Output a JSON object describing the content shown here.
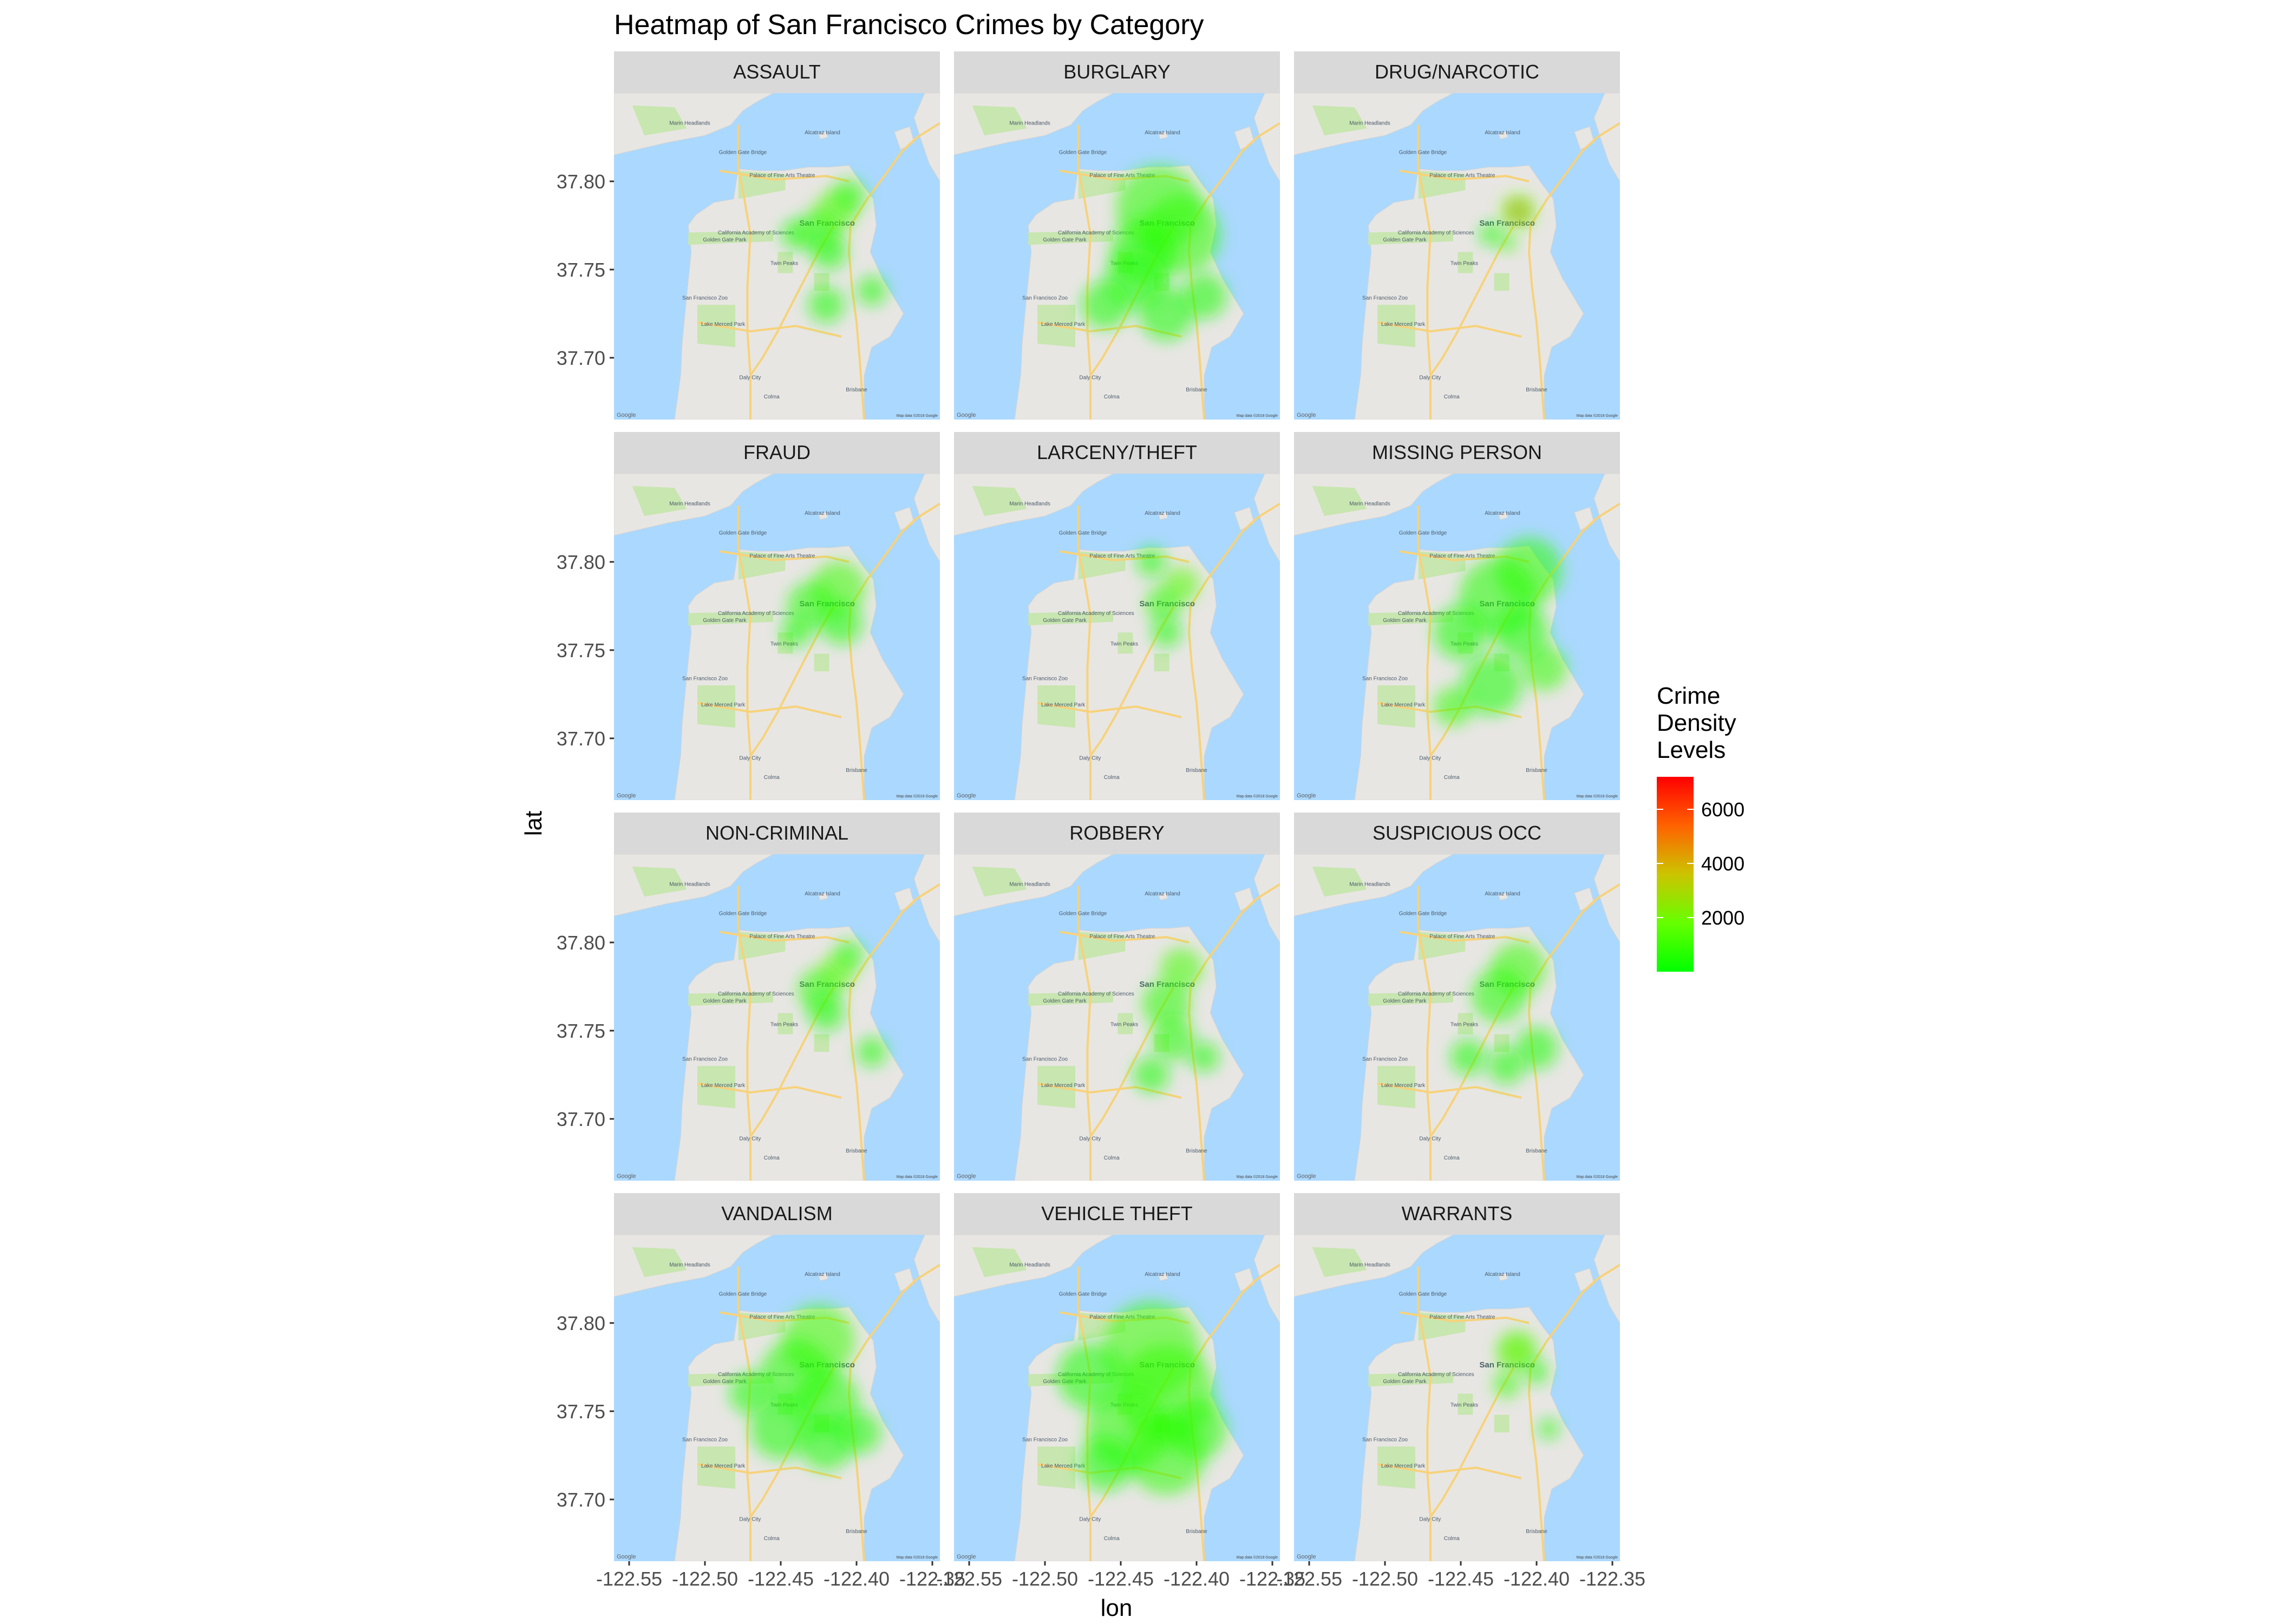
{
  "chart_data": {
    "type": "heatmap",
    "title": "Heatmap of San Francisco Crimes by Category",
    "xlabel": "lon",
    "ylabel": "lat",
    "xlim": [
      -122.56,
      -122.345
    ],
    "ylim": [
      37.665,
      37.85
    ],
    "x_ticks": [
      -122.55,
      -122.5,
      -122.45,
      -122.4,
      -122.35
    ],
    "x_tick_labels": [
      "-122.55",
      "-122.50",
      "-122.45",
      "-122.40",
      "-122.35"
    ],
    "y_ticks": [
      37.7,
      37.75,
      37.8
    ],
    "y_tick_labels": [
      "37.70",
      "37.75",
      "37.80"
    ],
    "legend": {
      "title": "Crime\nDensity\nLevels",
      "title_lines": [
        "Crime",
        "Density",
        "Levels"
      ],
      "placement": "right",
      "colors": [
        "#00ff00",
        "#ff0000"
      ],
      "range": [
        0,
        7200
      ],
      "breaks": [
        2000,
        4000,
        6000
      ],
      "break_labels": [
        "2000",
        "4000",
        "6000"
      ]
    },
    "panels": [
      {
        "label": "ASSAULT",
        "hotspots": [
          {
            "lon": -122.414,
            "lat": 37.783,
            "level": 1400,
            "r": 0.014
          },
          {
            "lon": -122.425,
            "lat": 37.772,
            "level": 700,
            "r": 0.014
          },
          {
            "lon": -122.405,
            "lat": 37.792,
            "level": 600,
            "r": 0.011
          },
          {
            "lon": -122.418,
            "lat": 37.76,
            "level": 450,
            "r": 0.012
          },
          {
            "lon": -122.44,
            "lat": 37.77,
            "level": 300,
            "r": 0.01
          },
          {
            "lon": -122.39,
            "lat": 37.738,
            "level": 300,
            "r": 0.01
          },
          {
            "lon": -122.42,
            "lat": 37.73,
            "level": 250,
            "r": 0.012
          }
        ]
      },
      {
        "label": "BURGLARY",
        "hotspots": [
          {
            "lon": -122.425,
            "lat": 37.785,
            "level": 700,
            "r": 0.028
          },
          {
            "lon": -122.41,
            "lat": 37.77,
            "level": 650,
            "r": 0.026
          },
          {
            "lon": -122.435,
            "lat": 37.76,
            "level": 500,
            "r": 0.022
          },
          {
            "lon": -122.44,
            "lat": 37.745,
            "level": 400,
            "r": 0.02
          },
          {
            "lon": -122.46,
            "lat": 37.73,
            "level": 400,
            "r": 0.016
          },
          {
            "lon": -122.42,
            "lat": 37.725,
            "level": 400,
            "r": 0.018
          },
          {
            "lon": -122.395,
            "lat": 37.735,
            "level": 350,
            "r": 0.015
          }
        ]
      },
      {
        "label": "DRUG/NARCOTIC",
        "hotspots": [
          {
            "lon": -122.412,
            "lat": 37.783,
            "level": 7000,
            "r": 0.006
          },
          {
            "lon": -122.412,
            "lat": 37.783,
            "level": 2000,
            "r": 0.012
          },
          {
            "lon": -122.419,
            "lat": 37.765,
            "level": 1200,
            "r": 0.006
          },
          {
            "lon": -122.43,
            "lat": 37.77,
            "level": 300,
            "r": 0.008
          }
        ]
      },
      {
        "label": "FRAUD",
        "hotspots": [
          {
            "lon": -122.412,
            "lat": 37.785,
            "level": 1000,
            "r": 0.018
          },
          {
            "lon": -122.43,
            "lat": 37.775,
            "level": 500,
            "r": 0.016
          },
          {
            "lon": -122.41,
            "lat": 37.765,
            "level": 400,
            "r": 0.014
          },
          {
            "lon": -122.44,
            "lat": 37.76,
            "level": 250,
            "r": 0.01
          }
        ]
      },
      {
        "label": "LARCENY/THEFT",
        "hotspots": [
          {
            "lon": -122.41,
            "lat": 37.787,
            "level": 1500,
            "r": 0.012
          },
          {
            "lon": -122.422,
            "lat": 37.776,
            "level": 700,
            "r": 0.012
          },
          {
            "lon": -122.43,
            "lat": 37.8,
            "level": 300,
            "r": 0.01
          },
          {
            "lon": -122.42,
            "lat": 37.76,
            "level": 300,
            "r": 0.01
          }
        ]
      },
      {
        "label": "MISSING PERSON",
        "hotspots": [
          {
            "lon": -122.405,
            "lat": 37.795,
            "level": 650,
            "r": 0.022
          },
          {
            "lon": -122.425,
            "lat": 37.78,
            "level": 600,
            "r": 0.026
          },
          {
            "lon": -122.395,
            "lat": 37.74,
            "level": 800,
            "r": 0.015
          },
          {
            "lon": -122.455,
            "lat": 37.718,
            "level": 800,
            "r": 0.013
          },
          {
            "lon": -122.43,
            "lat": 37.73,
            "level": 400,
            "r": 0.02
          },
          {
            "lon": -122.45,
            "lat": 37.76,
            "level": 350,
            "r": 0.018
          },
          {
            "lon": -122.41,
            "lat": 37.76,
            "level": 450,
            "r": 0.018
          }
        ]
      },
      {
        "label": "NON-CRIMINAL",
        "hotspots": [
          {
            "lon": -122.413,
            "lat": 37.783,
            "level": 1600,
            "r": 0.012
          },
          {
            "lon": -122.425,
            "lat": 37.773,
            "level": 700,
            "r": 0.014
          },
          {
            "lon": -122.405,
            "lat": 37.793,
            "level": 500,
            "r": 0.01
          },
          {
            "lon": -122.42,
            "lat": 37.76,
            "level": 400,
            "r": 0.012
          },
          {
            "lon": -122.39,
            "lat": 37.738,
            "level": 300,
            "r": 0.01
          }
        ]
      },
      {
        "label": "ROBBERY",
        "hotspots": [
          {
            "lon": -122.41,
            "lat": 37.785,
            "level": 1200,
            "r": 0.014
          },
          {
            "lon": -122.42,
            "lat": 37.765,
            "level": 700,
            "r": 0.016
          },
          {
            "lon": -122.415,
            "lat": 37.745,
            "level": 500,
            "r": 0.014
          },
          {
            "lon": -122.43,
            "lat": 37.725,
            "level": 400,
            "r": 0.012
          },
          {
            "lon": -122.395,
            "lat": 37.735,
            "level": 350,
            "r": 0.01
          }
        ]
      },
      {
        "label": "SUSPICIOUS OCC",
        "hotspots": [
          {
            "lon": -122.412,
            "lat": 37.785,
            "level": 900,
            "r": 0.018
          },
          {
            "lon": -122.425,
            "lat": 37.77,
            "level": 500,
            "r": 0.018
          },
          {
            "lon": -122.4,
            "lat": 37.74,
            "level": 400,
            "r": 0.014
          },
          {
            "lon": -122.445,
            "lat": 37.735,
            "level": 300,
            "r": 0.012
          },
          {
            "lon": -122.42,
            "lat": 37.73,
            "level": 300,
            "r": 0.012
          }
        ]
      },
      {
        "label": "VANDALISM",
        "hotspots": [
          {
            "lon": -122.425,
            "lat": 37.79,
            "level": 1000,
            "r": 0.024
          },
          {
            "lon": -122.44,
            "lat": 37.77,
            "level": 600,
            "r": 0.024
          },
          {
            "lon": -122.42,
            "lat": 37.755,
            "level": 500,
            "r": 0.022
          },
          {
            "lon": -122.45,
            "lat": 37.74,
            "level": 400,
            "r": 0.02
          },
          {
            "lon": -122.42,
            "lat": 37.732,
            "level": 400,
            "r": 0.018
          },
          {
            "lon": -122.398,
            "lat": 37.738,
            "level": 350,
            "r": 0.014
          },
          {
            "lon": -122.47,
            "lat": 37.76,
            "level": 250,
            "r": 0.014
          }
        ]
      },
      {
        "label": "VEHICLE THEFT",
        "hotspots": [
          {
            "lon": -122.43,
            "lat": 37.785,
            "level": 900,
            "r": 0.032
          },
          {
            "lon": -122.42,
            "lat": 37.76,
            "level": 850,
            "r": 0.032
          },
          {
            "lon": -122.445,
            "lat": 37.74,
            "level": 700,
            "r": 0.028
          },
          {
            "lon": -122.42,
            "lat": 37.725,
            "level": 700,
            "r": 0.026
          },
          {
            "lon": -122.47,
            "lat": 37.77,
            "level": 450,
            "r": 0.022
          },
          {
            "lon": -122.4,
            "lat": 37.74,
            "level": 500,
            "r": 0.02
          },
          {
            "lon": -122.46,
            "lat": 37.72,
            "level": 400,
            "r": 0.018
          }
        ]
      },
      {
        "label": "WARRANTS",
        "hotspots": [
          {
            "lon": -122.413,
            "lat": 37.784,
            "level": 3000,
            "r": 0.008
          },
          {
            "lon": -122.413,
            "lat": 37.784,
            "level": 1200,
            "r": 0.014
          },
          {
            "lon": -122.42,
            "lat": 37.765,
            "level": 900,
            "r": 0.009
          },
          {
            "lon": -122.4,
            "lat": 37.772,
            "level": 500,
            "r": 0.008
          },
          {
            "lon": -122.392,
            "lat": 37.74,
            "level": 350,
            "r": 0.007
          }
        ]
      }
    ]
  },
  "basemap": {
    "colors": {
      "water": "#abd8fe",
      "land": "#e8e6e3",
      "park": "#c8e6b0",
      "road": "#f7d27a",
      "panel_strip": "#d9d9d9",
      "strip_text": "#1a1a1a",
      "axis_text": "#4d4d4d",
      "tick": "#333333"
    },
    "place_labels": [
      {
        "text": "Alcatraz Island",
        "lon": -122.4225,
        "lat": 37.8267
      },
      {
        "text": "Golden Gate Bridge",
        "lon": -122.475,
        "lat": 37.8155
      },
      {
        "text": "Palace of Fine Arts Theatre",
        "lon": -122.449,
        "lat": 37.8024
      },
      {
        "text": "California Academy of Sciences",
        "lon": -122.4663,
        "lat": 37.7699
      },
      {
        "text": "San Francisco",
        "lon": -122.4194,
        "lat": 37.7749
      },
      {
        "text": "Golden Gate Park",
        "lon": -122.487,
        "lat": 37.766
      },
      {
        "text": "Twin Peaks",
        "lon": -122.4477,
        "lat": 37.7526
      },
      {
        "text": "San Francisco Zoo",
        "lon": -122.5,
        "lat": 37.733
      },
      {
        "text": "Lake Merced Park",
        "lon": -122.488,
        "lat": 37.718
      },
      {
        "text": "Daly City",
        "lon": -122.4702,
        "lat": 37.6879
      },
      {
        "text": "Colma",
        "lon": -122.456,
        "lat": 37.677
      },
      {
        "text": "Brisbane",
        "lon": -122.4,
        "lat": 37.681
      },
      {
        "text": "Marin Headlands",
        "lon": -122.51,
        "lat": 37.832
      }
    ],
    "google_label": "Google",
    "attribution": "Map data ©2018 Google"
  }
}
